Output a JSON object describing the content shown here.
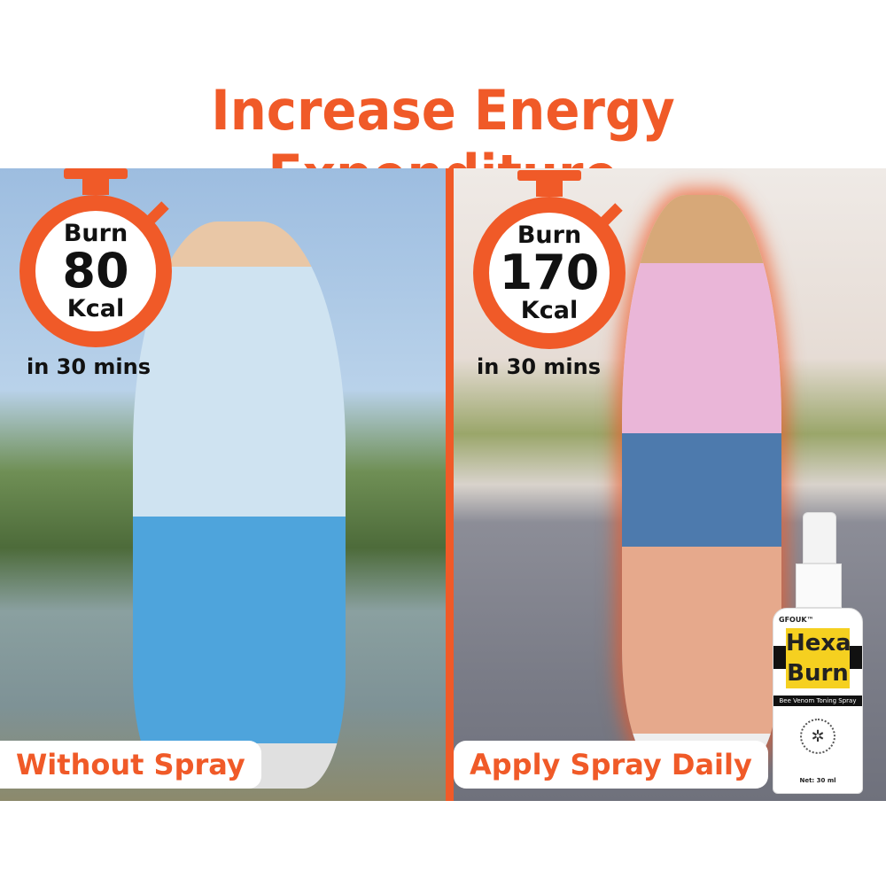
{
  "title": "Increase Energy Expenditure",
  "left": {
    "timer": {
      "burn": "Burn",
      "value": "80",
      "unit": "Kcal"
    },
    "duration": "in 30 mins",
    "label": "Without Spray"
  },
  "right": {
    "timer": {
      "burn": "Burn",
      "value": "170",
      "unit": "Kcal"
    },
    "duration": "in 30 mins",
    "label": "Apply Spray Daily"
  },
  "product": {
    "brand": "GFOUK™",
    "name_line1": "Hexa",
    "name_line2": "Burn",
    "tagline": "Bee Venom Toning Spray",
    "net": "Net: 30 ml",
    "icon": "bee-icon"
  },
  "colors": {
    "accent": "#f05a28",
    "product_yellow": "#f5d020"
  }
}
